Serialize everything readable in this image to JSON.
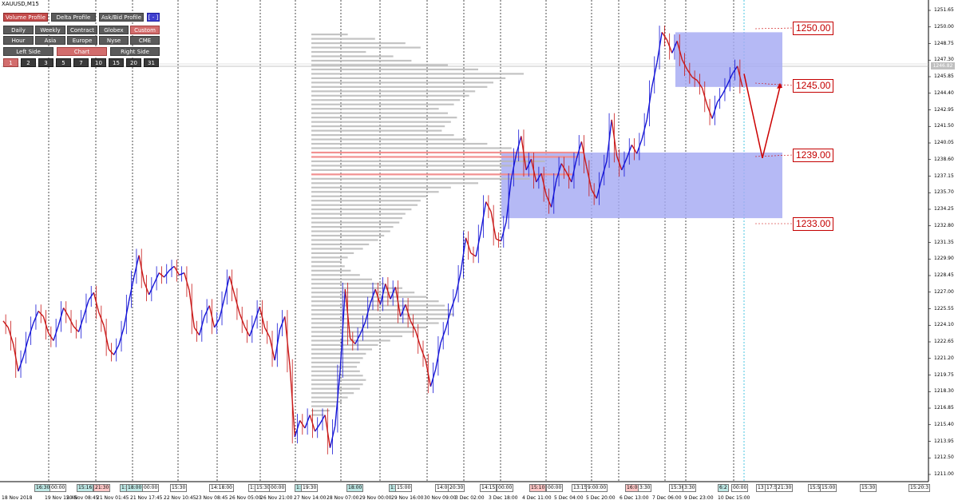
{
  "symbol": "XAUUSD,M15",
  "panel": {
    "row1": [
      {
        "label": "Volume Profile",
        "state": "active"
      },
      {
        "label": "Delta Profile",
        "state": "normal"
      },
      {
        "label": "Ask/Bid Profile",
        "state": "normal"
      },
      {
        "label": "[ - ]",
        "state": "blue"
      }
    ],
    "row2": [
      "Daily",
      "Weekly",
      "Contract",
      "Globex",
      "Custom"
    ],
    "row3": [
      "Hour",
      "Asia",
      "Europe",
      "Nyse",
      "CME"
    ],
    "row4": [
      "Left Side",
      "Chart",
      "Right Side"
    ],
    "row5": [
      "1",
      "2",
      "3",
      "5",
      "7",
      "10",
      "15",
      "20",
      "31"
    ]
  },
  "colors": {
    "candle_up": "#1515d6",
    "candle_down": "#c81818",
    "zone_fill": "#a5a9f3",
    "profile_gray": "#b9b9b9",
    "profile_poc": "#f18a8a",
    "annotation": "#cc0000",
    "badge_teal": "#bfe9e6",
    "badge_red": "#ffc7c7"
  },
  "annotations": [
    "1250.00",
    "1245.00",
    "1239.00",
    "1233.00"
  ],
  "current_price": "1246.82",
  "chart_data": {
    "type": "line",
    "title": "",
    "xlabel": "",
    "ylabel": "",
    "ylim": [
      1210.0,
      1252.0
    ],
    "y_ticks": [
      "1251.65",
      "1250.00",
      "1248.75",
      "1247.30",
      "1245.85",
      "1244.40",
      "1242.95",
      "1241.50",
      "1240.05",
      "1238.60",
      "1237.15",
      "1235.70",
      "1234.25",
      "1232.80",
      "1231.35",
      "1229.90",
      "1228.45",
      "1227.00",
      "1225.55",
      "1224.10",
      "1222.65",
      "1221.20",
      "1219.75",
      "1218.30",
      "1216.85",
      "1215.40",
      "1213.95",
      "1212.50",
      "1211.00"
    ],
    "x_ticks": [
      "18 Nov 2018",
      "19 Nov 15:45",
      "20 Nov 08:45",
      "21 Nov 01:45",
      "21 Nov 17:45",
      "22 Nov 10:45",
      "23 Nov 08:45",
      "26 Nov 05:00",
      "26 Nov 21:00",
      "27 Nov 14:00",
      "28 Nov 07:00",
      "29 Nov 00:00",
      "29 Nov 16:00",
      "30 Nov 09:00",
      "3 Dec 02:00",
      "3 Dec 18:00",
      "4 Dec 11:00",
      "5 Dec 04:00",
      "5 Dec 20:00",
      "6 Dec 13:00",
      "7 Dec 06:00",
      "9 Dec 23:00",
      "10 Dec 15:00"
    ],
    "session_badges": [
      {
        "text": "16:30",
        "tone": "teal"
      },
      {
        "text": "00:00",
        "tone": "plain"
      },
      {
        "text": "15:16",
        "tone": "teal"
      },
      {
        "text": "21:30",
        "tone": "red"
      },
      {
        "text": "1:5",
        "tone": "teal"
      },
      {
        "text": "18:00",
        "tone": "teal"
      },
      {
        "text": "00:00",
        "tone": "plain"
      },
      {
        "text": "15:30",
        "tone": "plain"
      },
      {
        "text": "14:18:00",
        "tone": "plain"
      },
      {
        "text": "1:5",
        "tone": "plain"
      },
      {
        "text": "15:30",
        "tone": "plain"
      },
      {
        "text": "00:00",
        "tone": "plain"
      },
      {
        "text": "1:5",
        "tone": "teal"
      },
      {
        "text": "19:30",
        "tone": "plain"
      },
      {
        "text": "18:00",
        "tone": "teal"
      },
      {
        "text": "1:5",
        "tone": "teal"
      },
      {
        "text": "15:00",
        "tone": "plain"
      },
      {
        "text": "14:00",
        "tone": "plain"
      },
      {
        "text": "20:30",
        "tone": "plain"
      },
      {
        "text": "14:15",
        "tone": "plain"
      },
      {
        "text": "00:00",
        "tone": "plain"
      },
      {
        "text": "15:10",
        "tone": "red"
      },
      {
        "text": "00:00",
        "tone": "plain"
      },
      {
        "text": "13:15",
        "tone": "plain"
      },
      {
        "text": "9:00:00",
        "tone": "plain"
      },
      {
        "text": "16:00",
        "tone": "red"
      },
      {
        "text": "3:30",
        "tone": "plain"
      },
      {
        "text": "15:30",
        "tone": "plain"
      },
      {
        "text": "3:30",
        "tone": "plain"
      },
      {
        "text": "6:2",
        "tone": "teal"
      },
      {
        "text": "00:00",
        "tone": "plain"
      },
      {
        "text": "13",
        "tone": "plain"
      },
      {
        "text": "17:5",
        "tone": "plain"
      },
      {
        "text": "21:30",
        "tone": "plain"
      },
      {
        "text": "15:5",
        "tone": "plain"
      },
      {
        "text": "15:00",
        "tone": "plain"
      },
      {
        "text": "15:30",
        "tone": "plain"
      },
      {
        "text": "15:20:3",
        "tone": "plain"
      }
    ],
    "series": [
      {
        "values": [
          1223.6,
          1223.0,
          1221.5,
          1219.0,
          1220.3,
          1222.0,
          1223.4,
          1224.5,
          1224.0,
          1222.5,
          1221.8,
          1223.2,
          1224.8,
          1224.0,
          1223.1,
          1222.6,
          1224.0,
          1225.5,
          1226.2,
          1224.4,
          1223.2,
          1221.0,
          1220.5,
          1221.4,
          1223.0,
          1225.4,
          1227.6,
          1229.6,
          1227.2,
          1226.0,
          1227.0,
          1228.0,
          1227.6,
          1228.2,
          1228.6,
          1227.8,
          1228.0,
          1226.4,
          1223.0,
          1222.3,
          1224.0,
          1225.0,
          1223.0,
          1223.8,
          1225.7,
          1227.7,
          1226.0,
          1224.3,
          1223.1,
          1222.2,
          1223.5,
          1224.9,
          1223.0,
          1222.1,
          1220.0,
          1222.8,
          1224.0,
          1219.5,
          1213.0,
          1214.5,
          1213.8,
          1215.0,
          1213.5,
          1214.2,
          1215.0,
          1212.0,
          1214.0,
          1219.0,
          1226.5,
          1222.0,
          1221.5,
          1222.4,
          1223.5,
          1225.2,
          1226.5,
          1225.1,
          1227.0,
          1225.6,
          1226.7,
          1224.0,
          1225.1,
          1223.6,
          1222.7,
          1221.2,
          1220.0,
          1217.6,
          1219.2,
          1221.6,
          1222.9,
          1224.6,
          1225.9,
          1228.1,
          1231.2,
          1229.8,
          1229.5,
          1231.8,
          1234.5,
          1233.6,
          1231.1,
          1230.9,
          1232.6,
          1236.5,
          1238.8,
          1240.5,
          1237.4,
          1238.4,
          1236.3,
          1237.1,
          1235.1,
          1234.0,
          1236.5,
          1238.0,
          1237.2,
          1236.3,
          1238.4,
          1240.0,
          1237.7,
          1235.6,
          1234.8,
          1236.6,
          1238.2,
          1242.0,
          1238.7,
          1237.4,
          1238.5,
          1239.7,
          1238.9,
          1240.2,
          1242.0,
          1245.0,
          1247.2,
          1250.0,
          1249.3,
          1248.1,
          1249.2,
          1247.5,
          1246.6,
          1245.9,
          1245.6,
          1244.9,
          1243.3,
          1242.1,
          1243.6,
          1244.3,
          1245.2,
          1246.2,
          1246.9,
          1245.0
        ]
      }
    ],
    "forecast_path": [
      1246.2,
      1238.5,
      1245.0
    ],
    "zones": [
      {
        "from": 1245.0,
        "to": 1250.0
      },
      {
        "from": 1233.0,
        "to": 1239.0
      }
    ],
    "volume_profile_rows": [
      {
        "price": 1249.8,
        "volume": 0.12
      },
      {
        "price": 1249.4,
        "volume": 0.21
      },
      {
        "price": 1249.0,
        "volume": 0.31
      },
      {
        "price": 1248.6,
        "volume": 0.36
      },
      {
        "price": 1248.2,
        "volume": 0.18
      },
      {
        "price": 1247.8,
        "volume": 0.27
      },
      {
        "price": 1247.4,
        "volume": 0.33
      },
      {
        "price": 1247.0,
        "volume": 0.45
      },
      {
        "price": 1246.6,
        "volume": 0.55
      },
      {
        "price": 1246.2,
        "volume": 0.7
      },
      {
        "price": 1245.8,
        "volume": 0.64
      },
      {
        "price": 1245.4,
        "volume": 0.6
      },
      {
        "price": 1245.0,
        "volume": 0.58
      },
      {
        "price": 1244.6,
        "volume": 0.54
      },
      {
        "price": 1244.2,
        "volume": 0.52
      },
      {
        "price": 1243.8,
        "volume": 0.49
      },
      {
        "price": 1243.4,
        "volume": 0.47
      },
      {
        "price": 1243.0,
        "volume": 0.42
      },
      {
        "price": 1242.6,
        "volume": 0.45
      },
      {
        "price": 1242.2,
        "volume": 0.48
      },
      {
        "price": 1241.8,
        "volume": 0.46
      },
      {
        "price": 1241.4,
        "volume": 0.44
      },
      {
        "price": 1241.0,
        "volume": 0.43
      },
      {
        "price": 1240.6,
        "volume": 0.47
      },
      {
        "price": 1240.2,
        "volume": 0.51
      },
      {
        "price": 1239.8,
        "volume": 0.58
      },
      {
        "price": 1239.4,
        "volume": 0.66
      },
      {
        "price": 1239.0,
        "volume": 0.9,
        "poc": true
      },
      {
        "price": 1238.6,
        "volume": 0.88,
        "poc": true
      },
      {
        "price": 1238.2,
        "volume": 0.77
      },
      {
        "price": 1237.8,
        "volume": 0.66
      },
      {
        "price": 1237.4,
        "volume": 0.62
      },
      {
        "price": 1237.0,
        "volume": 0.86,
        "poc": true
      },
      {
        "price": 1236.6,
        "volume": 0.72
      },
      {
        "price": 1236.2,
        "volume": 0.55
      },
      {
        "price": 1235.8,
        "volume": 0.46
      },
      {
        "price": 1235.4,
        "volume": 0.42
      },
      {
        "price": 1235.0,
        "volume": 0.38
      },
      {
        "price": 1234.6,
        "volume": 0.36
      },
      {
        "price": 1234.2,
        "volume": 0.35
      },
      {
        "price": 1233.8,
        "volume": 0.33
      },
      {
        "price": 1233.4,
        "volume": 0.31
      },
      {
        "price": 1233.0,
        "volume": 0.3
      },
      {
        "price": 1232.6,
        "volume": 0.29
      },
      {
        "price": 1232.2,
        "volume": 0.27
      },
      {
        "price": 1231.8,
        "volume": 0.26
      },
      {
        "price": 1231.4,
        "volume": 0.24
      },
      {
        "price": 1231.0,
        "volume": 0.22
      },
      {
        "price": 1230.6,
        "volume": 0.19
      },
      {
        "price": 1230.2,
        "volume": 0.17
      },
      {
        "price": 1229.8,
        "volume": 0.14
      },
      {
        "price": 1229.4,
        "volume": 0.12
      },
      {
        "price": 1229.0,
        "volume": 0.1
      },
      {
        "price": 1228.6,
        "volume": 0.11
      },
      {
        "price": 1228.2,
        "volume": 0.13
      },
      {
        "price": 1227.8,
        "volume": 0.16
      },
      {
        "price": 1227.4,
        "volume": 0.2
      },
      {
        "price": 1227.0,
        "volume": 0.24
      },
      {
        "price": 1226.6,
        "volume": 0.3
      },
      {
        "price": 1226.2,
        "volume": 0.34
      },
      {
        "price": 1225.8,
        "volume": 0.38
      },
      {
        "price": 1225.4,
        "volume": 0.42
      },
      {
        "price": 1225.0,
        "volume": 0.44
      },
      {
        "price": 1224.6,
        "volume": 0.46
      },
      {
        "price": 1224.2,
        "volume": 0.47
      },
      {
        "price": 1223.8,
        "volume": 0.45
      },
      {
        "price": 1223.4,
        "volume": 0.42
      },
      {
        "price": 1223.0,
        "volume": 0.38
      },
      {
        "price": 1222.6,
        "volume": 0.34
      },
      {
        "price": 1222.2,
        "volume": 0.3
      },
      {
        "price": 1221.8,
        "volume": 0.26
      },
      {
        "price": 1221.4,
        "volume": 0.22
      },
      {
        "price": 1221.0,
        "volume": 0.2
      },
      {
        "price": 1220.6,
        "volume": 0.18
      },
      {
        "price": 1220.2,
        "volume": 0.17
      },
      {
        "price": 1219.8,
        "volume": 0.16
      },
      {
        "price": 1219.4,
        "volume": 0.15
      },
      {
        "price": 1219.0,
        "volume": 0.16
      },
      {
        "price": 1218.6,
        "volume": 0.17
      },
      {
        "price": 1218.2,
        "volume": 0.18
      },
      {
        "price": 1217.8,
        "volume": 0.17
      },
      {
        "price": 1217.4,
        "volume": 0.16
      },
      {
        "price": 1217.0,
        "volume": 0.14
      },
      {
        "price": 1216.6,
        "volume": 0.12
      },
      {
        "price": 1216.2,
        "volume": 0.1
      },
      {
        "price": 1215.8,
        "volume": 0.08
      },
      {
        "price": 1215.4,
        "volume": 0.06
      },
      {
        "price": 1215.0,
        "volume": 0.04
      }
    ]
  }
}
